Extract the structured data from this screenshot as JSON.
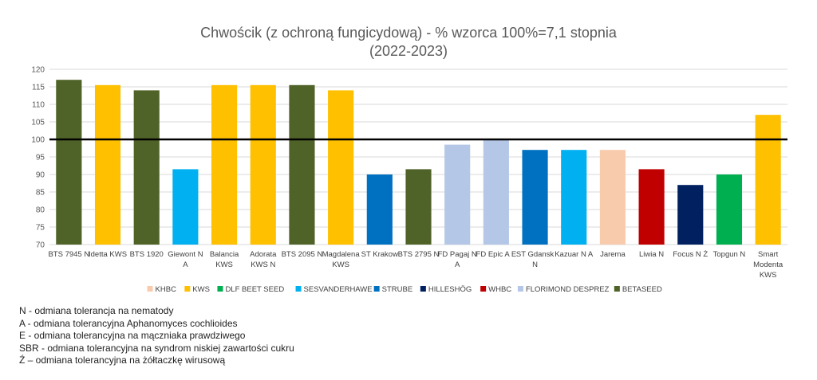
{
  "chart_data": {
    "type": "bar",
    "title": "Chwościk (z ochroną fungicydową) - % wzorca 100%=7,1 stopnia",
    "subtitle": "(2022-2023)",
    "xlabel": "",
    "ylabel": "",
    "ylim": [
      70,
      120
    ],
    "yticks": [
      70,
      75,
      80,
      85,
      90,
      95,
      100,
      105,
      110,
      115,
      120
    ],
    "grid": true,
    "reference_line": 100,
    "legend_position": "bottom",
    "categories": [
      [
        "BTS 7945 N"
      ],
      [
        "Idetta KWS"
      ],
      [
        "BTS 1920"
      ],
      [
        "Giewont N",
        "A"
      ],
      [
        "Balancia",
        "KWS"
      ],
      [
        "Adorata",
        "KWS N"
      ],
      [
        "BTS 2095 N"
      ],
      [
        "Magdalena",
        "KWS"
      ],
      [
        "ST Krakow"
      ],
      [
        "BTS 2795 N"
      ],
      [
        "FD Pagaj N",
        "A"
      ],
      [
        "FD Epic A E"
      ],
      [
        "ST Gdansk",
        "N"
      ],
      [
        "Kazuar N A"
      ],
      [
        "Jarema"
      ],
      [
        "Liwia N"
      ],
      [
        "Focus N Ż"
      ],
      [
        "Topgun N"
      ],
      [
        "Smart",
        "Modenta",
        "KWS"
      ]
    ],
    "values": [
      117,
      115.5,
      114,
      91.5,
      115.5,
      115.5,
      115.5,
      114,
      90,
      91.5,
      98.5,
      100,
      97,
      97,
      97,
      91.5,
      87,
      90,
      107
    ],
    "bar_series": [
      8,
      1,
      8,
      3,
      1,
      1,
      8,
      1,
      4,
      8,
      7,
      7,
      4,
      3,
      0,
      6,
      5,
      2,
      1
    ],
    "series": [
      {
        "name": "KHBC",
        "color": "#F8CBAD"
      },
      {
        "name": "KWS",
        "color": "#FFC000"
      },
      {
        "name": "DLF BEET SEED",
        "color": "#00B050"
      },
      {
        "name": "SESVANDERHAWE",
        "color": "#00B0F0"
      },
      {
        "name": "STRUBE",
        "color": "#0070C0"
      },
      {
        "name": "HILLESHÖG",
        "color": "#002060"
      },
      {
        "name": "WHBC",
        "color": "#C00000"
      },
      {
        "name": "FLORIMOND DESPREZ",
        "color": "#B4C7E7"
      },
      {
        "name": "BETASEED",
        "color": "#4F6228"
      }
    ]
  },
  "notes": [
    "N - odmiana tolerancja na nematody",
    "A - odmiana tolerancyjna Aphanomyces cochlioides",
    "E - odmiana tolerancyjna na mączniaka prawdziwego",
    "SBR - odmiana tolerancyjna na syndrom niskiej zawartości cukru",
    "Ź – odmiana tolerancyjna na żółtaczkę wirusową"
  ]
}
